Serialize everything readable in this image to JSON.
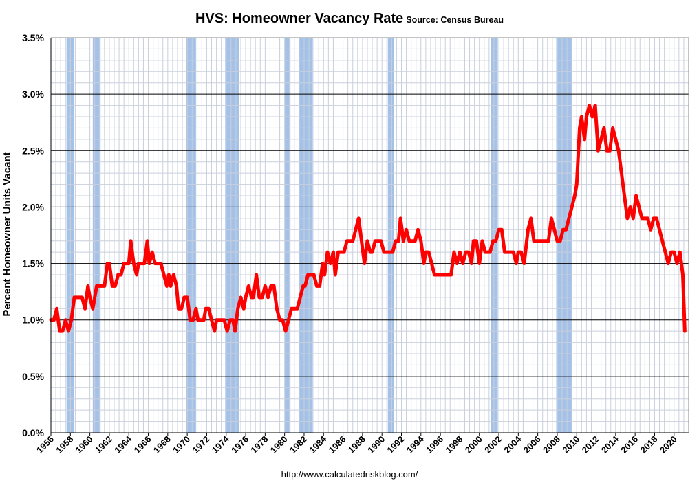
{
  "chart_data": {
    "type": "line",
    "title": "HVS: Homeowner Vacancy Rate",
    "source": "Source: Census Bureau",
    "xlabel": "",
    "ylabel": "Percent Homeowner Units Vacant",
    "footer": "http://www.calculatedriskblog.com/",
    "xlim": [
      1956,
      2021.5
    ],
    "ylim": [
      0,
      3.5
    ],
    "y_ticks": [
      {
        "value": 0.0,
        "label": "0.0%"
      },
      {
        "value": 0.5,
        "label": "0.5%"
      },
      {
        "value": 1.0,
        "label": "1.0%"
      },
      {
        "value": 1.5,
        "label": "1.5%"
      },
      {
        "value": 2.0,
        "label": "2.0%"
      },
      {
        "value": 2.5,
        "label": "2.5%"
      },
      {
        "value": 3.0,
        "label": "3.0%"
      },
      {
        "value": 3.5,
        "label": "3.5%"
      }
    ],
    "x_ticks": [
      "1956",
      "1958",
      "1960",
      "1962",
      "1964",
      "1966",
      "1968",
      "1970",
      "1972",
      "1974",
      "1976",
      "1978",
      "1980",
      "1982",
      "1984",
      "1986",
      "1988",
      "1990",
      "1992",
      "1994",
      "1996",
      "1998",
      "2000",
      "2002",
      "2004",
      "2006",
      "2008",
      "2010",
      "2012",
      "2014",
      "2016",
      "2018",
      "2020"
    ],
    "grid": true,
    "colors": {
      "series": "#ff0000",
      "recession": "#a4c2e8",
      "major_grid": "#000000",
      "minor_grid": "#c9cfdc"
    },
    "recessions": [
      {
        "start": 1957.6,
        "end": 1958.4
      },
      {
        "start": 1960.3,
        "end": 1961.1
      },
      {
        "start": 1969.9,
        "end": 1970.9
      },
      {
        "start": 1973.9,
        "end": 1975.3
      },
      {
        "start": 1980.0,
        "end": 1980.6
      },
      {
        "start": 1981.5,
        "end": 1982.9
      },
      {
        "start": 1990.6,
        "end": 1991.2
      },
      {
        "start": 2001.2,
        "end": 2001.9
      },
      {
        "start": 2007.9,
        "end": 2009.5
      }
    ],
    "series": [
      {
        "values": [
          [
            1956.0,
            1.0
          ],
          [
            1956.3,
            1.0
          ],
          [
            1956.6,
            1.1
          ],
          [
            1956.9,
            0.9
          ],
          [
            1957.2,
            0.9
          ],
          [
            1957.5,
            1.0
          ],
          [
            1957.8,
            0.9
          ],
          [
            1958.1,
            1.0
          ],
          [
            1958.4,
            1.2
          ],
          [
            1958.8,
            1.2
          ],
          [
            1959.2,
            1.2
          ],
          [
            1959.5,
            1.1
          ],
          [
            1959.8,
            1.3
          ],
          [
            1960.0,
            1.2
          ],
          [
            1960.3,
            1.1
          ],
          [
            1960.7,
            1.3
          ],
          [
            1961.1,
            1.3
          ],
          [
            1961.5,
            1.3
          ],
          [
            1961.8,
            1.5
          ],
          [
            1962.0,
            1.5
          ],
          [
            1962.3,
            1.3
          ],
          [
            1962.6,
            1.3
          ],
          [
            1962.9,
            1.4
          ],
          [
            1963.2,
            1.4
          ],
          [
            1963.5,
            1.5
          ],
          [
            1963.8,
            1.5
          ],
          [
            1964.0,
            1.5
          ],
          [
            1964.2,
            1.7
          ],
          [
            1964.5,
            1.5
          ],
          [
            1964.8,
            1.4
          ],
          [
            1965.0,
            1.5
          ],
          [
            1965.3,
            1.5
          ],
          [
            1965.6,
            1.5
          ],
          [
            1965.9,
            1.7
          ],
          [
            1966.1,
            1.5
          ],
          [
            1966.4,
            1.6
          ],
          [
            1966.7,
            1.5
          ],
          [
            1967.0,
            1.5
          ],
          [
            1967.3,
            1.5
          ],
          [
            1967.6,
            1.4
          ],
          [
            1967.9,
            1.3
          ],
          [
            1968.1,
            1.4
          ],
          [
            1968.3,
            1.3
          ],
          [
            1968.6,
            1.4
          ],
          [
            1968.9,
            1.3
          ],
          [
            1969.1,
            1.1
          ],
          [
            1969.4,
            1.1
          ],
          [
            1969.7,
            1.2
          ],
          [
            1970.0,
            1.2
          ],
          [
            1970.3,
            1.0
          ],
          [
            1970.6,
            1.0
          ],
          [
            1970.9,
            1.1
          ],
          [
            1971.1,
            1.0
          ],
          [
            1971.4,
            1.0
          ],
          [
            1971.7,
            1.0
          ],
          [
            1971.9,
            1.1
          ],
          [
            1972.2,
            1.1
          ],
          [
            1972.5,
            1.0
          ],
          [
            1972.8,
            0.9
          ],
          [
            1973.0,
            1.0
          ],
          [
            1973.3,
            1.0
          ],
          [
            1973.6,
            1.0
          ],
          [
            1973.8,
            1.0
          ],
          [
            1974.1,
            0.9
          ],
          [
            1974.4,
            1.0
          ],
          [
            1974.7,
            1.0
          ],
          [
            1974.9,
            0.9
          ],
          [
            1975.2,
            1.1
          ],
          [
            1975.5,
            1.2
          ],
          [
            1975.8,
            1.1
          ],
          [
            1976.0,
            1.2
          ],
          [
            1976.3,
            1.3
          ],
          [
            1976.6,
            1.2
          ],
          [
            1976.8,
            1.2
          ],
          [
            1977.1,
            1.4
          ],
          [
            1977.4,
            1.2
          ],
          [
            1977.7,
            1.2
          ],
          [
            1978.0,
            1.3
          ],
          [
            1978.3,
            1.2
          ],
          [
            1978.6,
            1.3
          ],
          [
            1978.9,
            1.3
          ],
          [
            1979.2,
            1.1
          ],
          [
            1979.5,
            1.0
          ],
          [
            1979.8,
            1.0
          ],
          [
            1980.1,
            0.9
          ],
          [
            1980.4,
            1.0
          ],
          [
            1980.7,
            1.1
          ],
          [
            1981.0,
            1.1
          ],
          [
            1981.3,
            1.1
          ],
          [
            1981.6,
            1.2
          ],
          [
            1981.9,
            1.3
          ],
          [
            1982.1,
            1.3
          ],
          [
            1982.4,
            1.4
          ],
          [
            1982.7,
            1.4
          ],
          [
            1983.0,
            1.4
          ],
          [
            1983.3,
            1.3
          ],
          [
            1983.6,
            1.3
          ],
          [
            1983.9,
            1.5
          ],
          [
            1984.1,
            1.4
          ],
          [
            1984.4,
            1.6
          ],
          [
            1984.7,
            1.5
          ],
          [
            1985.0,
            1.6
          ],
          [
            1985.2,
            1.4
          ],
          [
            1985.5,
            1.6
          ],
          [
            1985.8,
            1.6
          ],
          [
            1986.1,
            1.6
          ],
          [
            1986.4,
            1.7
          ],
          [
            1986.7,
            1.7
          ],
          [
            1987.0,
            1.7
          ],
          [
            1987.3,
            1.8
          ],
          [
            1987.6,
            1.9
          ],
          [
            1987.9,
            1.7
          ],
          [
            1988.2,
            1.5
          ],
          [
            1988.5,
            1.7
          ],
          [
            1988.8,
            1.6
          ],
          [
            1989.0,
            1.6
          ],
          [
            1989.3,
            1.7
          ],
          [
            1989.6,
            1.7
          ],
          [
            1989.9,
            1.7
          ],
          [
            1990.2,
            1.6
          ],
          [
            1990.5,
            1.6
          ],
          [
            1990.8,
            1.6
          ],
          [
            1991.1,
            1.6
          ],
          [
            1991.4,
            1.7
          ],
          [
            1991.7,
            1.7
          ],
          [
            1991.9,
            1.9
          ],
          [
            1992.2,
            1.7
          ],
          [
            1992.5,
            1.8
          ],
          [
            1992.8,
            1.7
          ],
          [
            1993.1,
            1.7
          ],
          [
            1993.4,
            1.7
          ],
          [
            1993.7,
            1.8
          ],
          [
            1994.0,
            1.7
          ],
          [
            1994.3,
            1.5
          ],
          [
            1994.5,
            1.6
          ],
          [
            1994.8,
            1.6
          ],
          [
            1995.1,
            1.5
          ],
          [
            1995.4,
            1.4
          ],
          [
            1995.7,
            1.4
          ],
          [
            1996.0,
            1.4
          ],
          [
            1996.3,
            1.4
          ],
          [
            1996.6,
            1.4
          ],
          [
            1996.9,
            1.4
          ],
          [
            1997.1,
            1.4
          ],
          [
            1997.4,
            1.6
          ],
          [
            1997.7,
            1.5
          ],
          [
            1998.0,
            1.6
          ],
          [
            1998.3,
            1.5
          ],
          [
            1998.6,
            1.6
          ],
          [
            1998.9,
            1.6
          ],
          [
            1999.2,
            1.5
          ],
          [
            1999.4,
            1.7
          ],
          [
            1999.7,
            1.7
          ],
          [
            2000.0,
            1.5
          ],
          [
            2000.3,
            1.7
          ],
          [
            2000.6,
            1.6
          ],
          [
            2000.9,
            1.6
          ],
          [
            2001.1,
            1.6
          ],
          [
            2001.4,
            1.7
          ],
          [
            2001.7,
            1.7
          ],
          [
            2002.0,
            1.8
          ],
          [
            2002.3,
            1.8
          ],
          [
            2002.6,
            1.6
          ],
          [
            2002.9,
            1.6
          ],
          [
            2003.2,
            1.6
          ],
          [
            2003.5,
            1.6
          ],
          [
            2003.8,
            1.5
          ],
          [
            2004.0,
            1.6
          ],
          [
            2004.3,
            1.6
          ],
          [
            2004.6,
            1.5
          ],
          [
            2005.0,
            1.8
          ],
          [
            2005.3,
            1.9
          ],
          [
            2005.6,
            1.7
          ],
          [
            2005.9,
            1.7
          ],
          [
            2006.2,
            1.7
          ],
          [
            2006.5,
            1.7
          ],
          [
            2006.8,
            1.7
          ],
          [
            2007.1,
            1.7
          ],
          [
            2007.4,
            1.9
          ],
          [
            2007.7,
            1.8
          ],
          [
            2008.0,
            1.7
          ],
          [
            2008.3,
            1.7
          ],
          [
            2008.6,
            1.8
          ],
          [
            2008.9,
            1.8
          ],
          [
            2009.2,
            1.9
          ],
          [
            2009.5,
            2.0
          ],
          [
            2009.8,
            2.1
          ],
          [
            2010.0,
            2.2
          ],
          [
            2010.3,
            2.7
          ],
          [
            2010.5,
            2.8
          ],
          [
            2010.8,
            2.6
          ],
          [
            2011.0,
            2.8
          ],
          [
            2011.3,
            2.9
          ],
          [
            2011.6,
            2.8
          ],
          [
            2011.9,
            2.9
          ],
          [
            2012.2,
            2.5
          ],
          [
            2012.5,
            2.6
          ],
          [
            2012.8,
            2.7
          ],
          [
            2013.1,
            2.5
          ],
          [
            2013.4,
            2.5
          ],
          [
            2013.7,
            2.7
          ],
          [
            2014.0,
            2.6
          ],
          [
            2014.3,
            2.5
          ],
          [
            2014.6,
            2.3
          ],
          [
            2014.9,
            2.1
          ],
          [
            2015.2,
            1.9
          ],
          [
            2015.5,
            2.0
          ],
          [
            2015.8,
            1.9
          ],
          [
            2016.1,
            2.1
          ],
          [
            2016.4,
            2.0
          ],
          [
            2016.7,
            1.9
          ],
          [
            2017.0,
            1.9
          ],
          [
            2017.3,
            1.9
          ],
          [
            2017.6,
            1.8
          ],
          [
            2017.9,
            1.9
          ],
          [
            2018.2,
            1.9
          ],
          [
            2018.5,
            1.8
          ],
          [
            2018.8,
            1.7
          ],
          [
            2019.1,
            1.6
          ],
          [
            2019.4,
            1.5
          ],
          [
            2019.7,
            1.6
          ],
          [
            2020.0,
            1.6
          ],
          [
            2020.3,
            1.5
          ],
          [
            2020.6,
            1.6
          ],
          [
            2020.9,
            1.4
          ],
          [
            2021.1,
            0.9
          ]
        ]
      }
    ]
  }
}
